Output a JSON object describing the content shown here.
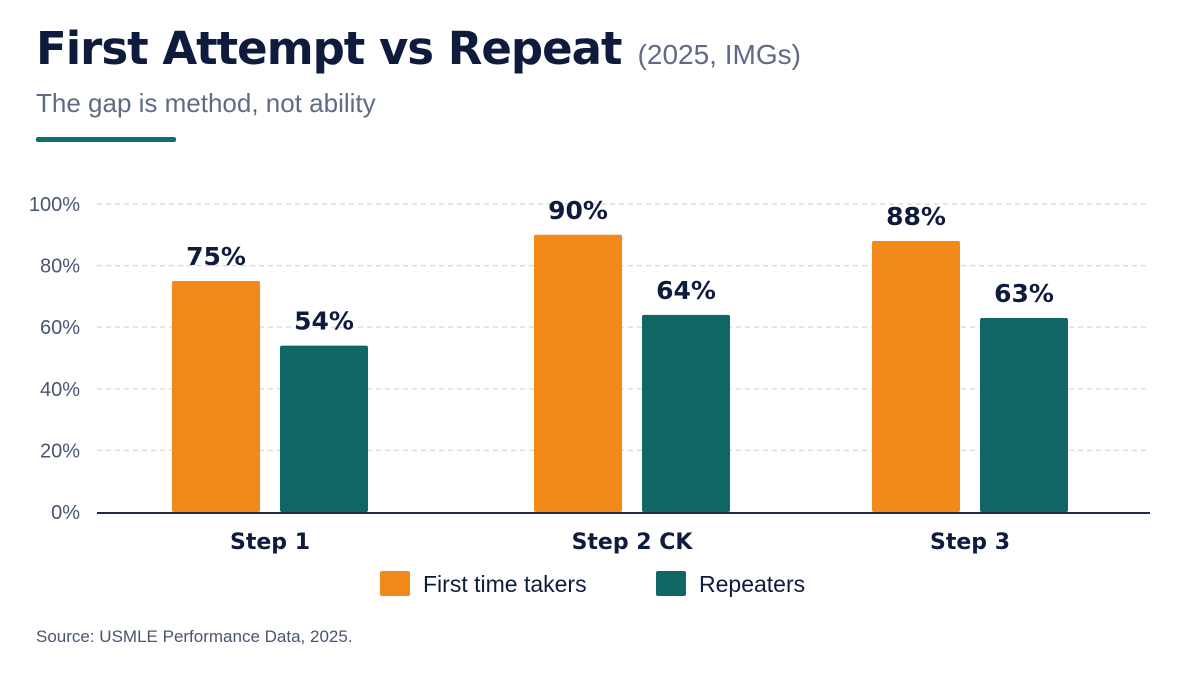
{
  "header": {
    "title": "First Attempt vs Repeat",
    "title_note": "(2025, IMGs)",
    "subtitle": "The gap is method, not ability"
  },
  "footer": {
    "source": "Source: USMLE Performance Data, 2025."
  },
  "colors": {
    "first_time": "#f28a1a",
    "repeaters": "#0f6664",
    "accent_rule": "#0f6e6e",
    "text_dark": "#0f1b3d",
    "text_muted": "#5f6b85"
  },
  "chart_data": {
    "type": "bar",
    "categories": [
      "Step 1",
      "Step 2 CK",
      "Step 3"
    ],
    "series": [
      {
        "name": "First time takers",
        "values": [
          75,
          90,
          88
        ],
        "labels": [
          "75%",
          "90%",
          "88%"
        ],
        "color": "#f28a1a"
      },
      {
        "name": "Repeaters",
        "values": [
          54,
          64,
          63
        ],
        "labels": [
          "54%",
          "64%",
          "63%"
        ],
        "color": "#0f6664"
      }
    ],
    "ylim": [
      0,
      100
    ],
    "yticks": [
      0,
      20,
      40,
      60,
      80,
      100
    ],
    "ytick_labels": [
      "0%",
      "20%",
      "40%",
      "60%",
      "80%",
      "100%"
    ],
    "grid": true,
    "legend": "bottom-center"
  }
}
